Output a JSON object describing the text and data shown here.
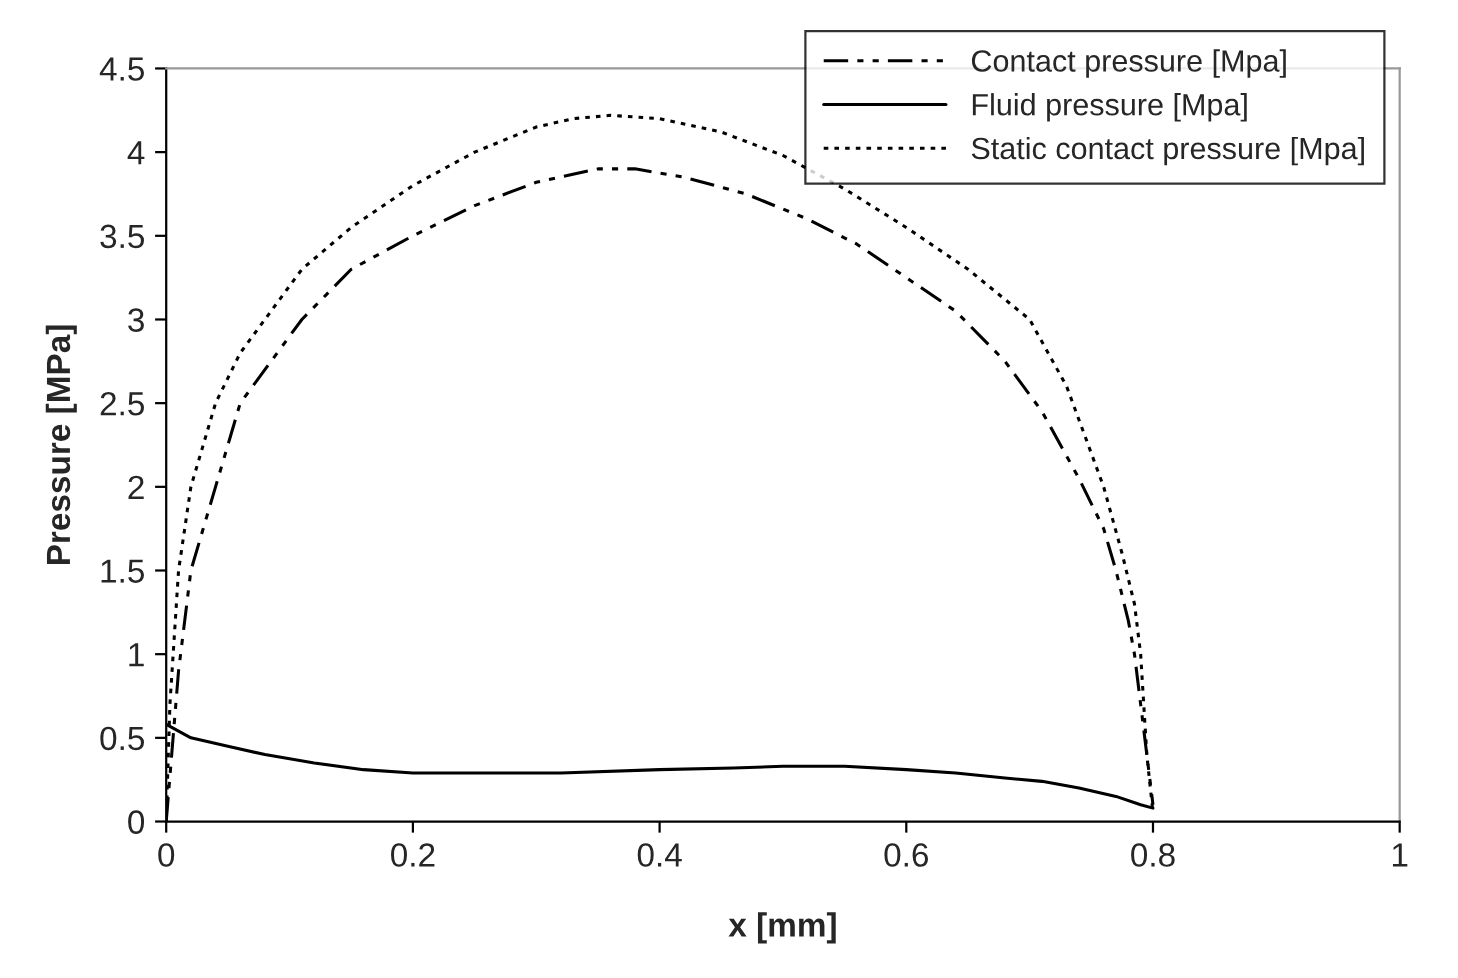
{
  "chart_data": {
    "type": "line",
    "xlabel": "x [mm]",
    "ylabel": "Pressure [MPa]",
    "xlim": [
      0,
      1
    ],
    "xticks": [
      0,
      0.2,
      0.4,
      0.6,
      0.8,
      1
    ],
    "ylim": [
      0,
      4.5
    ],
    "yticks": [
      0,
      0.5,
      1,
      1.5,
      2,
      2.5,
      3,
      3.5,
      4,
      4.5
    ],
    "grid": false,
    "legend": "top right",
    "marker": "none",
    "series": [
      {
        "name": "Contact pressure [Mpa]",
        "color": "#000000",
        "line_style": "dashed",
        "x": [
          0,
          0.01,
          0.02,
          0.04,
          0.06,
          0.08,
          0.11,
          0.15,
          0.2,
          0.25,
          0.3,
          0.35,
          0.38,
          0.42,
          0.47,
          0.52,
          0.56,
          0.6,
          0.64,
          0.68,
          0.71,
          0.74,
          0.76,
          0.77,
          0.78,
          0.785,
          0.79,
          0.795,
          0.8
        ],
        "values": [
          0,
          0.9,
          1.5,
          2.0,
          2.5,
          2.7,
          3.0,
          3.3,
          3.5,
          3.68,
          3.82,
          3.9,
          3.9,
          3.85,
          3.75,
          3.6,
          3.45,
          3.25,
          3.05,
          2.75,
          2.45,
          2.05,
          1.75,
          1.5,
          1.2,
          1.0,
          0.7,
          0.4,
          0.1
        ]
      },
      {
        "name": "Fluid pressure [Mpa]",
        "color": "#000000",
        "line_style": "solid",
        "x": [
          0,
          0.02,
          0.05,
          0.08,
          0.12,
          0.16,
          0.2,
          0.26,
          0.32,
          0.4,
          0.46,
          0.5,
          0.55,
          0.6,
          0.64,
          0.68,
          0.71,
          0.74,
          0.77,
          0.79,
          0.8
        ],
        "values": [
          0.58,
          0.5,
          0.45,
          0.4,
          0.35,
          0.31,
          0.29,
          0.29,
          0.29,
          0.31,
          0.32,
          0.33,
          0.33,
          0.31,
          0.29,
          0.26,
          0.24,
          0.2,
          0.15,
          0.1,
          0.08
        ]
      },
      {
        "name": "Static contact pressure [Mpa]",
        "color": "#000000",
        "line_style": "dotted",
        "x": [
          0,
          0.003,
          0.01,
          0.02,
          0.04,
          0.06,
          0.08,
          0.11,
          0.15,
          0.2,
          0.25,
          0.3,
          0.33,
          0.36,
          0.4,
          0.45,
          0.5,
          0.55,
          0.6,
          0.65,
          0.7,
          0.73,
          0.76,
          0.775,
          0.785,
          0.79,
          0.795,
          0.8
        ],
        "values": [
          0,
          0.7,
          1.5,
          2.0,
          2.5,
          2.8,
          3.0,
          3.3,
          3.55,
          3.8,
          4.0,
          4.15,
          4.2,
          4.22,
          4.2,
          4.12,
          3.98,
          3.78,
          3.55,
          3.3,
          3.0,
          2.6,
          2.0,
          1.6,
          1.3,
          1.0,
          0.4,
          0.05
        ]
      }
    ]
  }
}
